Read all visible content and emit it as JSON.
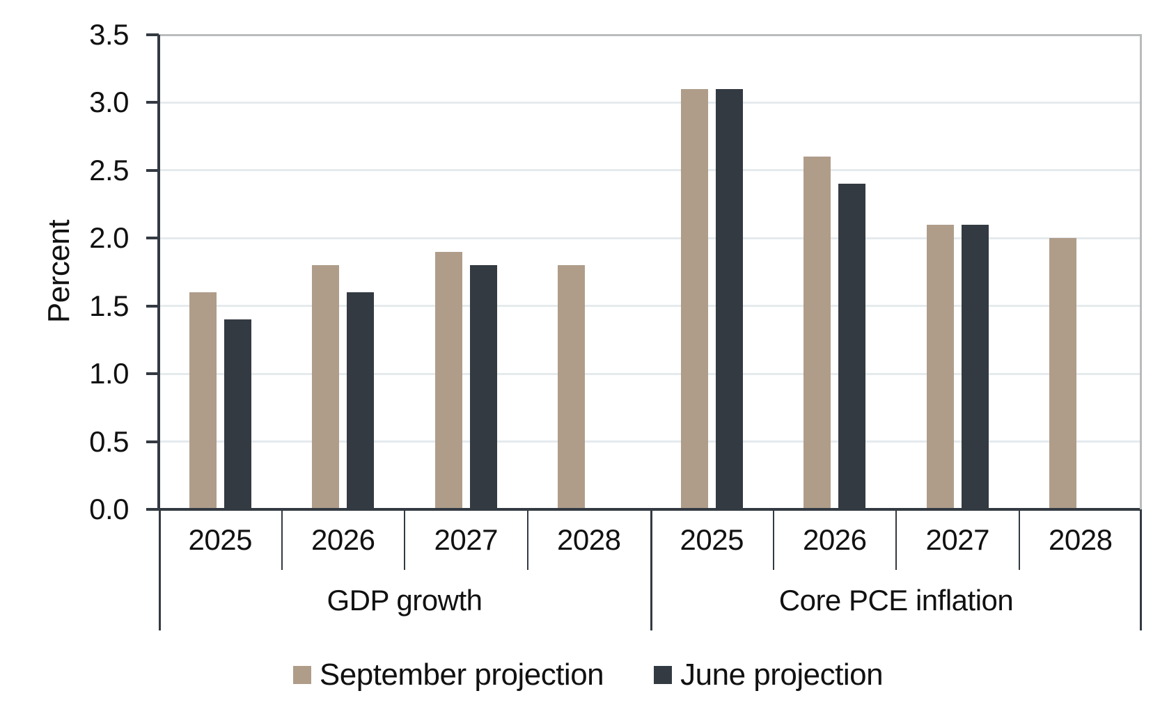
{
  "chart_data": {
    "type": "bar",
    "title": "",
    "ylabel": "Percent",
    "ylim": [
      0,
      3.5
    ],
    "ytick_labels": [
      "3.5",
      "3.0",
      "2.5",
      "2.0",
      "1.5",
      "1.0",
      "0.5",
      "0.0"
    ],
    "grid": true,
    "legend_position": "bottom",
    "groups": [
      {
        "label": "GDP growth",
        "categories": [
          "2025",
          "2026",
          "2027",
          "2028"
        ]
      },
      {
        "label": "Core PCE inflation",
        "categories": [
          "2025",
          "2026",
          "2027",
          "2028"
        ]
      }
    ],
    "series": [
      {
        "name": "September projection",
        "color": "#AF9D8A",
        "values": [
          [
            1.6,
            1.8,
            1.9,
            1.8
          ],
          [
            3.1,
            2.6,
            2.1,
            2.0
          ]
        ]
      },
      {
        "name": "June projection",
        "color": "#333A42",
        "values": [
          [
            1.4,
            1.6,
            1.8,
            null
          ],
          [
            3.1,
            2.4,
            2.1,
            null
          ]
        ]
      }
    ]
  },
  "colors": {
    "background": "#FFFFFF",
    "gridline": "#E5EAED",
    "plot_border": "#B9BBBC",
    "axis": "#333A42",
    "text": "#111111"
  }
}
